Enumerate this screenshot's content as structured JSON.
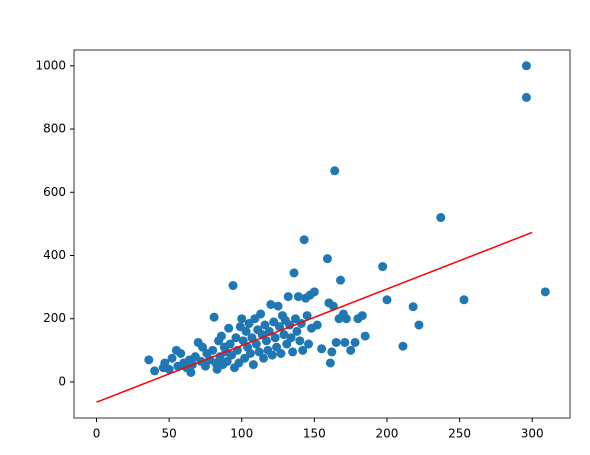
{
  "chart_data": {
    "type": "scatter",
    "xlim": [
      -15.5,
      326
    ],
    "ylim": [
      -114,
      1050
    ],
    "xticks": [
      0,
      50,
      100,
      150,
      200,
      250,
      300
    ],
    "yticks": [
      0,
      200,
      400,
      600,
      800,
      1000
    ],
    "series": [
      {
        "type": "scatter",
        "color": "#1f77b4",
        "x": [
          36,
          40,
          46,
          47,
          50,
          52,
          55,
          56,
          58,
          60,
          62,
          64,
          65,
          66,
          68,
          70,
          72,
          73,
          75,
          76,
          78,
          80,
          81,
          82,
          83,
          84,
          85,
          86,
          87,
          88,
          89,
          90,
          91,
          92,
          93,
          94,
          95,
          96,
          97,
          98,
          99,
          100,
          101,
          102,
          103,
          104,
          105,
          106,
          107,
          108,
          109,
          110,
          111,
          112,
          113,
          114,
          115,
          116,
          117,
          118,
          119,
          120,
          121,
          122,
          123,
          124,
          125,
          126,
          127,
          128,
          129,
          130,
          131,
          132,
          133,
          134,
          135,
          136,
          137,
          138,
          139,
          140,
          141,
          142,
          143,
          144,
          145,
          146,
          147,
          148,
          150,
          152,
          155,
          159,
          160,
          161,
          162,
          163,
          164,
          165,
          167,
          168,
          170,
          171,
          172,
          175,
          178,
          180,
          183,
          185,
          197,
          200,
          211,
          218,
          222,
          237,
          253,
          296,
          296,
          309
        ],
        "y": [
          70,
          35,
          45,
          60,
          40,
          75,
          100,
          50,
          90,
          60,
          45,
          70,
          30,
          55,
          80,
          125,
          65,
          110,
          50,
          90,
          70,
          100,
          205,
          60,
          40,
          130,
          80,
          145,
          55,
          110,
          95,
          65,
          170,
          120,
          85,
          305,
          45,
          140,
          100,
          60,
          175,
          200,
          130,
          75,
          160,
          110,
          185,
          90,
          140,
          55,
          200,
          120,
          165,
          95,
          215,
          150,
          75,
          180,
          130,
          100,
          160,
          245,
          85,
          190,
          140,
          110,
          240,
          175,
          90,
          210,
          150,
          195,
          120,
          270,
          180,
          140,
          95,
          345,
          200,
          160,
          270,
          130,
          185,
          100,
          450,
          265,
          210,
          120,
          275,
          170,
          285,
          180,
          105,
          390,
          250,
          60,
          95,
          240,
          668,
          125,
          200,
          322,
          215,
          125,
          200,
          100,
          125,
          200,
          210,
          145,
          365,
          260,
          113,
          238,
          180,
          520,
          260,
          1000,
          900,
          285
        ]
      },
      {
        "type": "line",
        "color": "#ff0000",
        "x": [
          0,
          300
        ],
        "y": [
          -64,
          473
        ]
      }
    ]
  }
}
